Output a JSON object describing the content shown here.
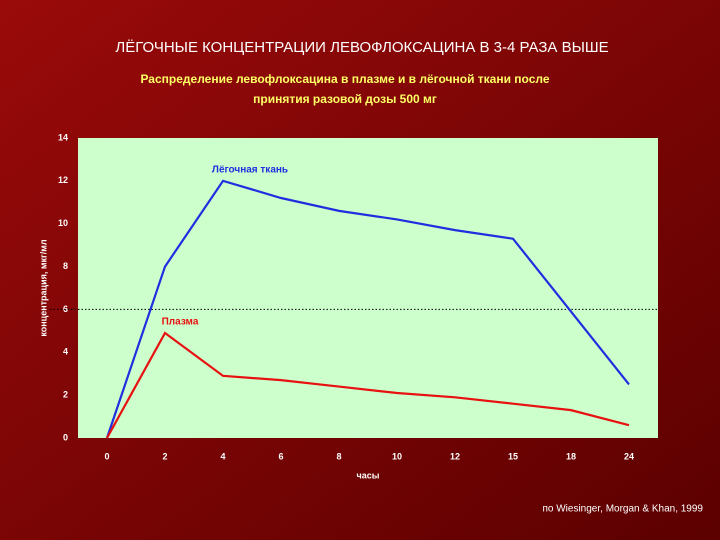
{
  "chart_data": {
    "type": "line",
    "title": "ЛЁГОЧНЫЕ КОНЦЕНТРАЦИИ  ЛЕВОФЛОКСАЦИНА  В 3-4 РАЗА ВЫШЕ",
    "subtitle": [
      "Распределение левофлоксацина в плазме и в лёгочной ткани после",
      "принятия разовой дозы 500 мг"
    ],
    "x_label": "часы",
    "y_label": "концентрация, мкг/мл",
    "source": "по Wiesinger, Morgan & Khan, 1999",
    "categories": [
      "0",
      "2",
      "4",
      "6",
      "8",
      "10",
      "12",
      "15",
      "18",
      "24"
    ],
    "series": [
      {
        "name": "Лёгочная ткань",
        "color": "#1f2fe0",
        "values": [
          0,
          8,
          12,
          11.2,
          10.6,
          10.2,
          9.7,
          9.3,
          5.9,
          2.5
        ]
      },
      {
        "name": "Плазма",
        "color": "#e81010",
        "values": [
          0,
          4.9,
          2.9,
          2.7,
          2.4,
          2.1,
          1.9,
          1.6,
          1.3,
          0.6
        ]
      }
    ],
    "ylim": [
      0,
      14
    ],
    "yticks": [
      0,
      2,
      4,
      6,
      8,
      10,
      12,
      14
    ],
    "reference_line": 6,
    "plot_background": "#ccffcc"
  }
}
